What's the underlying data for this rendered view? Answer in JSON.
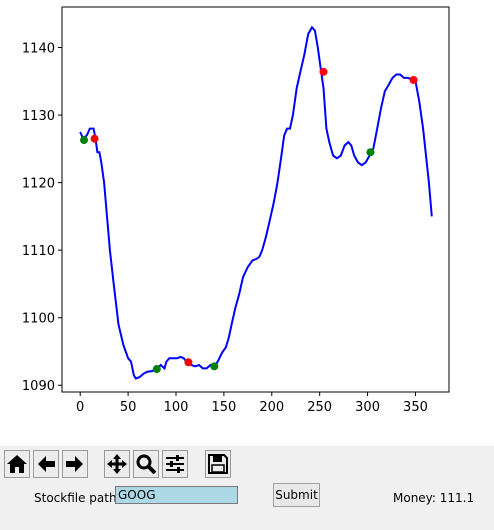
{
  "chart_data": {
    "type": "line",
    "title": "",
    "xlabel": "",
    "ylabel": "",
    "xlim": [
      -19,
      385
    ],
    "ylim": [
      1089,
      1146
    ],
    "x_ticks": [
      0,
      50,
      100,
      150,
      200,
      250,
      300,
      350
    ],
    "y_ticks": [
      1090,
      1100,
      1110,
      1120,
      1130,
      1140
    ],
    "grid": false,
    "line_color": "#0000ff",
    "series": [
      {
        "points": [
          [
            0,
            1127.5
          ],
          [
            3,
            1126.5
          ],
          [
            7,
            1127
          ],
          [
            10,
            1128
          ],
          [
            12,
            1128
          ],
          [
            14,
            1128
          ],
          [
            16,
            1126.5
          ],
          [
            18,
            1124.5
          ],
          [
            20,
            1124.5
          ],
          [
            22,
            1123
          ],
          [
            25,
            1120
          ],
          [
            28,
            1115
          ],
          [
            31,
            1110
          ],
          [
            35,
            1105
          ],
          [
            40,
            1099
          ],
          [
            45,
            1096
          ],
          [
            50,
            1094
          ],
          [
            53,
            1093.5
          ],
          [
            56,
            1091.5
          ],
          [
            58,
            1091
          ],
          [
            62,
            1091.2
          ],
          [
            66,
            1091.7
          ],
          [
            70,
            1092
          ],
          [
            75,
            1092.1
          ],
          [
            80,
            1092.4
          ],
          [
            84,
            1093
          ],
          [
            88,
            1092.5
          ],
          [
            90,
            1093.5
          ],
          [
            93,
            1094
          ],
          [
            97,
            1094
          ],
          [
            101,
            1094
          ],
          [
            105,
            1094.2
          ],
          [
            108,
            1094
          ],
          [
            112,
            1093.3
          ],
          [
            116,
            1093
          ],
          [
            120,
            1092.8
          ],
          [
            124,
            1093
          ],
          [
            128,
            1092.5
          ],
          [
            132,
            1092.5
          ],
          [
            136,
            1093
          ],
          [
            140,
            1092.7
          ],
          [
            144,
            1093.6
          ],
          [
            148,
            1094.8
          ],
          [
            152,
            1095.6
          ],
          [
            155,
            1097
          ],
          [
            158,
            1099
          ],
          [
            162,
            1101.5
          ],
          [
            166,
            1103.5
          ],
          [
            170,
            1106
          ],
          [
            175,
            1107.5
          ],
          [
            180,
            1108.5
          ],
          [
            184,
            1108.7
          ],
          [
            187,
            1109
          ],
          [
            190,
            1110
          ],
          [
            194,
            1112
          ],
          [
            198,
            1114.5
          ],
          [
            202,
            1117
          ],
          [
            206,
            1120
          ],
          [
            210,
            1124
          ],
          [
            213,
            1127
          ],
          [
            216,
            1128
          ],
          [
            219,
            1128
          ],
          [
            222,
            1130
          ],
          [
            226,
            1134
          ],
          [
            230,
            1136.5
          ],
          [
            234,
            1139
          ],
          [
            238,
            1142
          ],
          [
            242,
            1143
          ],
          [
            245,
            1142.5
          ],
          [
            248,
            1140
          ],
          [
            251,
            1137
          ],
          [
            254,
            1134
          ],
          [
            257,
            1128
          ],
          [
            260,
            1126
          ],
          [
            264,
            1124
          ],
          [
            268,
            1123.6
          ],
          [
            272,
            1124
          ],
          [
            276,
            1125.5
          ],
          [
            280,
            1126
          ],
          [
            283,
            1125.5
          ],
          [
            286,
            1124
          ],
          [
            290,
            1123
          ],
          [
            294,
            1122.6
          ],
          [
            298,
            1123
          ],
          [
            302,
            1124
          ],
          [
            306,
            1125
          ],
          [
            310,
            1128
          ],
          [
            314,
            1131
          ],
          [
            318,
            1133.5
          ],
          [
            322,
            1134.5
          ],
          [
            326,
            1135.5
          ],
          [
            330,
            1136
          ],
          [
            334,
            1136
          ],
          [
            338,
            1135.5
          ],
          [
            342,
            1135.5
          ],
          [
            346,
            1135.3
          ],
          [
            350,
            1135
          ],
          [
            354,
            1132
          ],
          [
            358,
            1128
          ],
          [
            361,
            1124
          ],
          [
            364,
            1120
          ],
          [
            367,
            1115
          ]
        ]
      }
    ],
    "sell_markers": {
      "color": "#ff0000",
      "points": [
        [
          15,
          1126.5
        ],
        [
          113,
          1093.4
        ],
        [
          254,
          1136.4
        ],
        [
          348,
          1135.2
        ]
      ]
    },
    "buy_markers": {
      "color": "#008000",
      "points": [
        [
          4,
          1126.3
        ],
        [
          80,
          1092.4
        ],
        [
          140,
          1092.8
        ],
        [
          303,
          1124.5
        ]
      ]
    }
  },
  "toolbar": {
    "buttons": [
      "home-icon",
      "back-arrow-icon",
      "forward-arrow-icon",
      "pan-icon",
      "zoom-icon",
      "configure-subplots-icon",
      "save-icon"
    ]
  },
  "form": {
    "path_label": "Stockfile path:",
    "path_value": "GOOG",
    "submit_label": "Submit",
    "money_text": "Money: 111.1"
  }
}
